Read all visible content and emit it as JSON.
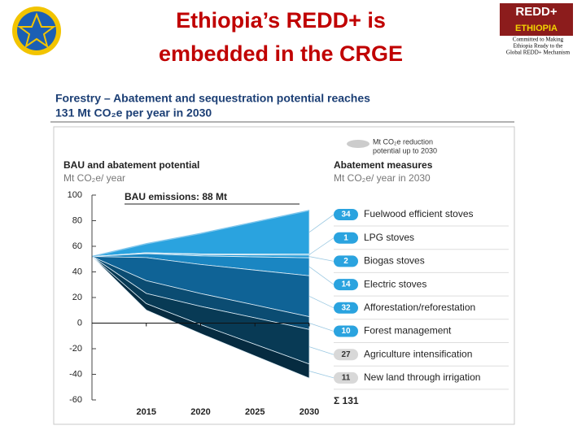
{
  "header": {
    "title_lines": [
      "Ethiopia’s REDD+ is",
      "embedded in the CRGE"
    ],
    "logo": {
      "lines": [
        "REDD+",
        "ETHIOPIA"
      ],
      "tagline": [
        "Committed to Making",
        "Ethiopia Ready to the",
        "Global REDD+ Mechanism"
      ]
    }
  },
  "chart_data": {
    "type": "area",
    "title_lines": [
      "Forestry – Abatement and sequestration potential reaches",
      "131 Mt CO₂e per year in 2030"
    ],
    "left_heading": "BAU and abatement potential",
    "left_unit": "Mt CO₂e/ year",
    "right_heading": "Abatement measures",
    "right_unit": "Mt CO₂e/ year in 2030",
    "legend_label": [
      "Mt CO₂e reduction",
      "potential up to 2030"
    ],
    "bau_annotation": "BAU emissions: 88 Mt",
    "total_label": "Σ 131",
    "x": [
      2010,
      2015,
      2020,
      2025,
      2030
    ],
    "xlim": [
      2010,
      2030
    ],
    "xticks": [
      2015,
      2020,
      2025,
      2030
    ],
    "ylim": [
      -60,
      100
    ],
    "yticks": [
      -60,
      -40,
      -20,
      0,
      20,
      40,
      60,
      80,
      100
    ],
    "bau": [
      52,
      62,
      70,
      79,
      88
    ],
    "series": [
      {
        "name": "Fuelwood efficient stoves",
        "color": "#2aa3df",
        "values": [
          0,
          7,
          16,
          25,
          34
        ]
      },
      {
        "name": "LPG stoves",
        "color": "#4fb4e4",
        "values": [
          0,
          0.3,
          0.5,
          0.8,
          1
        ]
      },
      {
        "name": "Biogas stoves",
        "color": "#1e98d6",
        "values": [
          0,
          0.5,
          1,
          1.5,
          2
        ]
      },
      {
        "name": "Electric stoves",
        "color": "#1a86c2",
        "values": [
          0,
          3,
          6.7,
          10.3,
          14
        ]
      },
      {
        "name": "Afforestation/reforestation",
        "color": "#0f6396",
        "values": [
          0,
          18,
          22.7,
          27.3,
          32
        ]
      },
      {
        "name": "Forest management",
        "color": "#0b4c72",
        "values": [
          0,
          10,
          10,
          10,
          10
        ]
      },
      {
        "name": "Agriculture intensification",
        "color": "#083a55",
        "values": [
          0,
          8,
          14.3,
          20.7,
          27
        ]
      },
      {
        "name": "New land through irrigation",
        "color": "#062b40",
        "values": [
          0,
          5,
          7,
          9,
          11
        ]
      }
    ]
  }
}
